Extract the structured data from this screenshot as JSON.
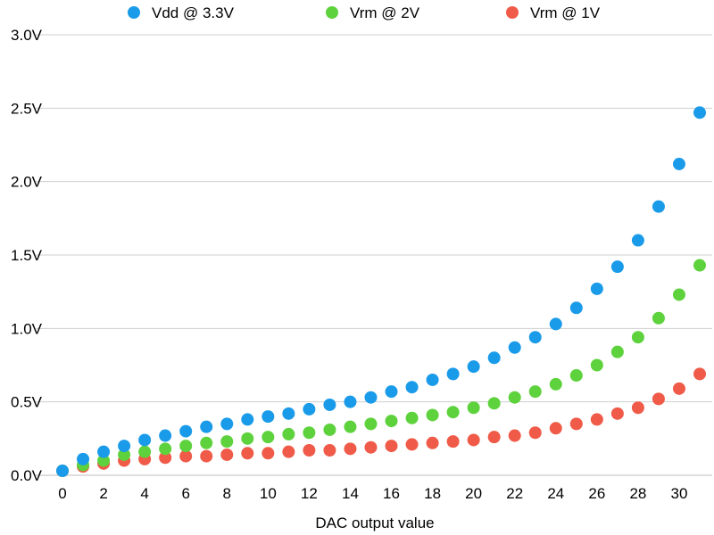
{
  "chart_data": {
    "type": "scatter",
    "title": "",
    "xlabel": "DAC output value",
    "ylabel": "",
    "xlim": [
      0,
      31
    ],
    "ylim": [
      0,
      3.0
    ],
    "x_ticks": [
      0,
      2,
      4,
      6,
      8,
      10,
      12,
      14,
      16,
      18,
      20,
      22,
      24,
      26,
      28,
      30
    ],
    "y_ticks": [
      {
        "value": 0.0,
        "label": "0.0V"
      },
      {
        "value": 0.5,
        "label": "0.5V"
      },
      {
        "value": 1.0,
        "label": "1.0V"
      },
      {
        "value": 1.5,
        "label": "1.5V"
      },
      {
        "value": 2.0,
        "label": "2.0V"
      },
      {
        "value": 2.5,
        "label": "2.5V"
      },
      {
        "value": 3.0,
        "label": "3.0V"
      }
    ],
    "grid": true,
    "legend_position": "top",
    "x": [
      0,
      1,
      2,
      3,
      4,
      5,
      6,
      7,
      8,
      9,
      10,
      11,
      12,
      13,
      14,
      15,
      16,
      17,
      18,
      19,
      20,
      21,
      22,
      23,
      24,
      25,
      26,
      27,
      28,
      29,
      30,
      31
    ],
    "series": [
      {
        "name": "Vdd @ 3.3V",
        "color": "#1a9bea",
        "values": [
          0.03,
          0.11,
          0.16,
          0.2,
          0.24,
          0.27,
          0.3,
          0.33,
          0.35,
          0.38,
          0.4,
          0.42,
          0.45,
          0.48,
          0.5,
          0.53,
          0.57,
          0.6,
          0.65,
          0.69,
          0.74,
          0.8,
          0.87,
          0.94,
          1.03,
          1.14,
          1.27,
          1.42,
          1.6,
          1.83,
          2.12,
          2.47
        ]
      },
      {
        "name": "Vrm @ 2V",
        "color": "#5dd23c",
        "values": [
          0.03,
          0.07,
          0.1,
          0.14,
          0.16,
          0.18,
          0.2,
          0.22,
          0.23,
          0.25,
          0.26,
          0.28,
          0.29,
          0.31,
          0.33,
          0.35,
          0.37,
          0.39,
          0.41,
          0.43,
          0.46,
          0.49,
          0.53,
          0.57,
          0.62,
          0.68,
          0.75,
          0.84,
          0.94,
          1.07,
          1.23,
          1.43
        ]
      },
      {
        "name": "Vrm @ 1V",
        "color": "#f05a48",
        "values": [
          0.03,
          0.06,
          0.08,
          0.1,
          0.11,
          0.12,
          0.13,
          0.13,
          0.14,
          0.15,
          0.15,
          0.16,
          0.17,
          0.17,
          0.18,
          0.19,
          0.2,
          0.21,
          0.22,
          0.23,
          0.24,
          0.26,
          0.27,
          0.29,
          0.32,
          0.35,
          0.38,
          0.42,
          0.46,
          0.52,
          0.59,
          0.69
        ]
      }
    ]
  }
}
